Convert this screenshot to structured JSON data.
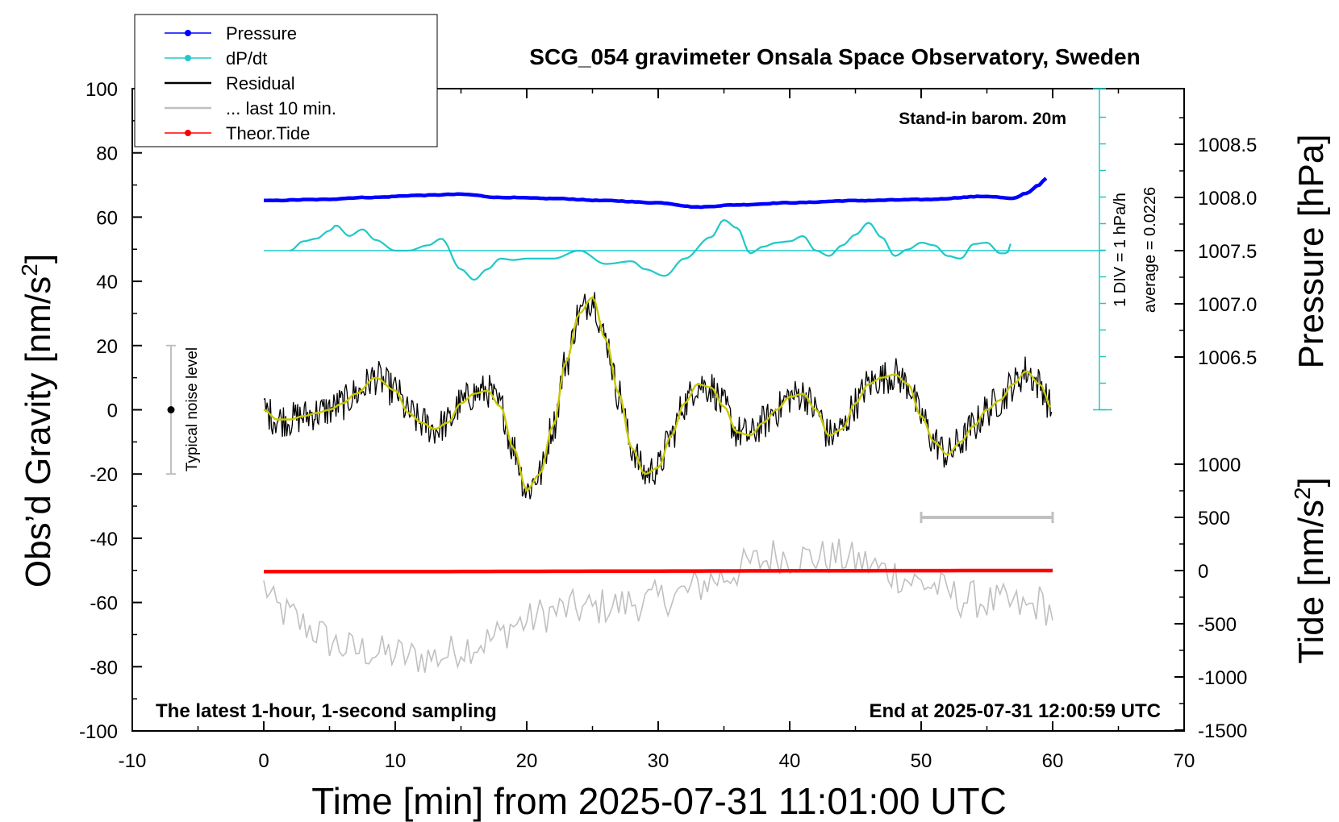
{
  "chart_data": {
    "type": "line",
    "title": "SCG_054 gravimeter Onsala Space Observatory, Sweden",
    "subtitle_right": "Stand-in barom. 20m",
    "footer_left": "The latest 1-hour, 1-second sampling",
    "footer_right": "End at 2025-07-31 12:00:59 UTC",
    "xlabel": "Time [min] from 2025-07-31 11:01:00 UTC",
    "ylabel_left": "Obs’d Gravity [nm/s",
    "ylabel_left_sup": "2",
    "ylabel_left_end": "]",
    "ylabel_right_top": "Pressure [hPa]",
    "ylabel_right_bottom": "Tide [nm/s",
    "ylabel_right_bottom_sup": "2",
    "ylabel_right_bottom_end": "]",
    "xlim": [
      -10,
      70
    ],
    "ylim": [
      -100,
      100
    ],
    "pressure_lim": [
      1006.0,
      1009.0
    ],
    "tide_lim": [
      -1500,
      1500
    ],
    "x_ticks": [
      "-10",
      "0",
      "10",
      "20",
      "30",
      "40",
      "50",
      "60",
      "70"
    ],
    "y_ticks": [
      "100",
      "80",
      "60",
      "40",
      "20",
      "0",
      "-20",
      "-40",
      "-60",
      "-80",
      "-100"
    ],
    "pressure_ticks": [
      "1008.5",
      "1008.0",
      "1007.5",
      "1007.0",
      "1006.5"
    ],
    "tide_ticks": [
      "1000",
      "500",
      "0",
      "-500",
      "-1000",
      "-1500"
    ],
    "noise_label": "Typical noise level",
    "div_label": "1 DIV = 1 hPa/h",
    "average_label": "average = 0.0226",
    "legend": [
      {
        "label": "Pressure",
        "color": "#0000ff",
        "marker": true
      },
      {
        "label": "dP/dt",
        "color": "#20c8c8",
        "marker": true
      },
      {
        "label": "Residual",
        "color": "#000000",
        "marker": false
      },
      {
        "label": "... last 10 min.",
        "color": "#c0c0c0",
        "marker": false
      },
      {
        "label": "Theor.Tide",
        "color": "#ff0000",
        "marker": true
      }
    ],
    "colors": {
      "pressure": "#0000ff",
      "dpdt": "#20c8c8",
      "residual": "#000000",
      "residual_smooth": "#c8c800",
      "last10": "#c0c0c0",
      "tide": "#ff0000"
    },
    "series": [
      {
        "name": "Pressure",
        "axis": "right-pressure",
        "x": [
          0,
          4,
          8,
          12,
          15,
          18,
          22,
          26,
          30,
          33,
          36,
          40,
          45,
          50,
          55,
          57,
          58,
          59,
          59.5
        ],
        "values": [
          1007.97,
          1007.98,
          1008.0,
          1008.02,
          1008.03,
          1008.0,
          1007.99,
          1007.97,
          1007.95,
          1007.91,
          1007.93,
          1007.95,
          1007.97,
          1007.98,
          1008.01,
          1007.99,
          1008.04,
          1008.12,
          1008.18
        ]
      },
      {
        "name": "dP/dt",
        "axis": "dpdt-scale",
        "x": [
          2,
          3,
          4,
          5,
          5.5,
          6.5,
          7.5,
          8.5,
          10,
          11,
          12.5,
          13.5,
          15,
          16,
          17,
          18,
          19,
          20,
          22,
          24,
          26,
          28,
          29,
          30.5,
          32,
          34,
          35,
          36,
          37,
          38,
          39,
          40,
          41,
          42,
          43,
          44,
          45,
          46,
          47,
          48,
          49,
          50,
          51,
          52,
          53,
          54,
          55,
          56,
          56.5,
          57
        ],
        "values": [
          0.0,
          0.35,
          0.45,
          0.75,
          0.95,
          0.55,
          0.8,
          0.4,
          0.0,
          0.0,
          0.2,
          0.45,
          -0.7,
          -1.1,
          -0.7,
          -0.3,
          -0.35,
          -0.3,
          -0.3,
          0.0,
          -0.5,
          -0.4,
          -0.7,
          -0.95,
          -0.3,
          0.5,
          1.15,
          0.85,
          -0.1,
          0.15,
          0.3,
          0.35,
          0.55,
          0.0,
          -0.2,
          0.2,
          0.6,
          1.05,
          0.5,
          -0.2,
          0.05,
          0.3,
          0.2,
          -0.2,
          -0.3,
          0.25,
          0.3,
          -0.1,
          -0.1,
          0.45
        ]
      },
      {
        "name": "Residual",
        "axis": "left",
        "x": [
          0,
          1,
          2,
          3,
          4,
          5,
          6,
          7,
          8.5,
          10,
          11,
          12,
          13,
          14,
          15,
          16,
          17,
          18,
          19,
          20,
          21,
          22,
          23,
          24,
          25,
          26,
          27,
          28,
          29,
          30,
          31,
          32,
          33,
          34,
          35,
          36,
          37,
          38,
          39,
          40,
          41,
          42,
          43,
          44,
          45,
          46,
          47,
          48,
          49,
          50,
          51,
          52,
          53,
          54,
          55,
          56,
          57,
          58,
          59,
          60
        ],
        "values": [
          0,
          -3,
          -3,
          -2,
          -1,
          0,
          2,
          5,
          10,
          6,
          -1,
          -4,
          -6,
          -4,
          2,
          5,
          6,
          1,
          -12,
          -25,
          -20,
          -5,
          15,
          30,
          35,
          22,
          5,
          -12,
          -20,
          -18,
          -8,
          2,
          8,
          7,
          1,
          -7,
          -8,
          -4,
          0,
          4,
          5,
          0,
          -8,
          -6,
          2,
          8,
          10,
          11,
          8,
          -2,
          -10,
          -14,
          -10,
          -5,
          0,
          3,
          8,
          12,
          8,
          0
        ]
      },
      {
        "name": "... last 10 min.",
        "axis": "left",
        "x": [
          0,
          1,
          2,
          3,
          4,
          5,
          6,
          7,
          8,
          9,
          10,
          11,
          12,
          13,
          14,
          15,
          16,
          17,
          18,
          19,
          20,
          21,
          22,
          23,
          24,
          25,
          26,
          27,
          28,
          29,
          30,
          31,
          32,
          33,
          34,
          35,
          36,
          37,
          38,
          39,
          40,
          41,
          42,
          43,
          44,
          45,
          46,
          47,
          48,
          49,
          50,
          51,
          52,
          53,
          54,
          55,
          56,
          57,
          58,
          59,
          60
        ],
        "values": [
          -55,
          -62,
          -64,
          -67,
          -69,
          -72,
          -74,
          -75,
          -75,
          -76,
          -76,
          -77,
          -77,
          -77,
          -76,
          -74,
          -73,
          -72,
          -70,
          -67,
          -66,
          -64,
          -63,
          -62,
          -62,
          -62,
          -61,
          -61,
          -60,
          -60,
          -59,
          -58,
          -57,
          -55,
          -53,
          -52,
          -50,
          -48,
          -47,
          -45,
          -46,
          -46,
          -46,
          -46,
          -46,
          -47,
          -48,
          -50,
          -51,
          -53,
          -54,
          -55,
          -57,
          -59,
          -59,
          -60,
          -60,
          -61,
          -62,
          -60,
          -63
        ]
      },
      {
        "name": "Theor.Tide",
        "axis": "right-tide",
        "x": [
          0,
          60
        ],
        "values": [
          -10,
          0
        ]
      }
    ]
  }
}
